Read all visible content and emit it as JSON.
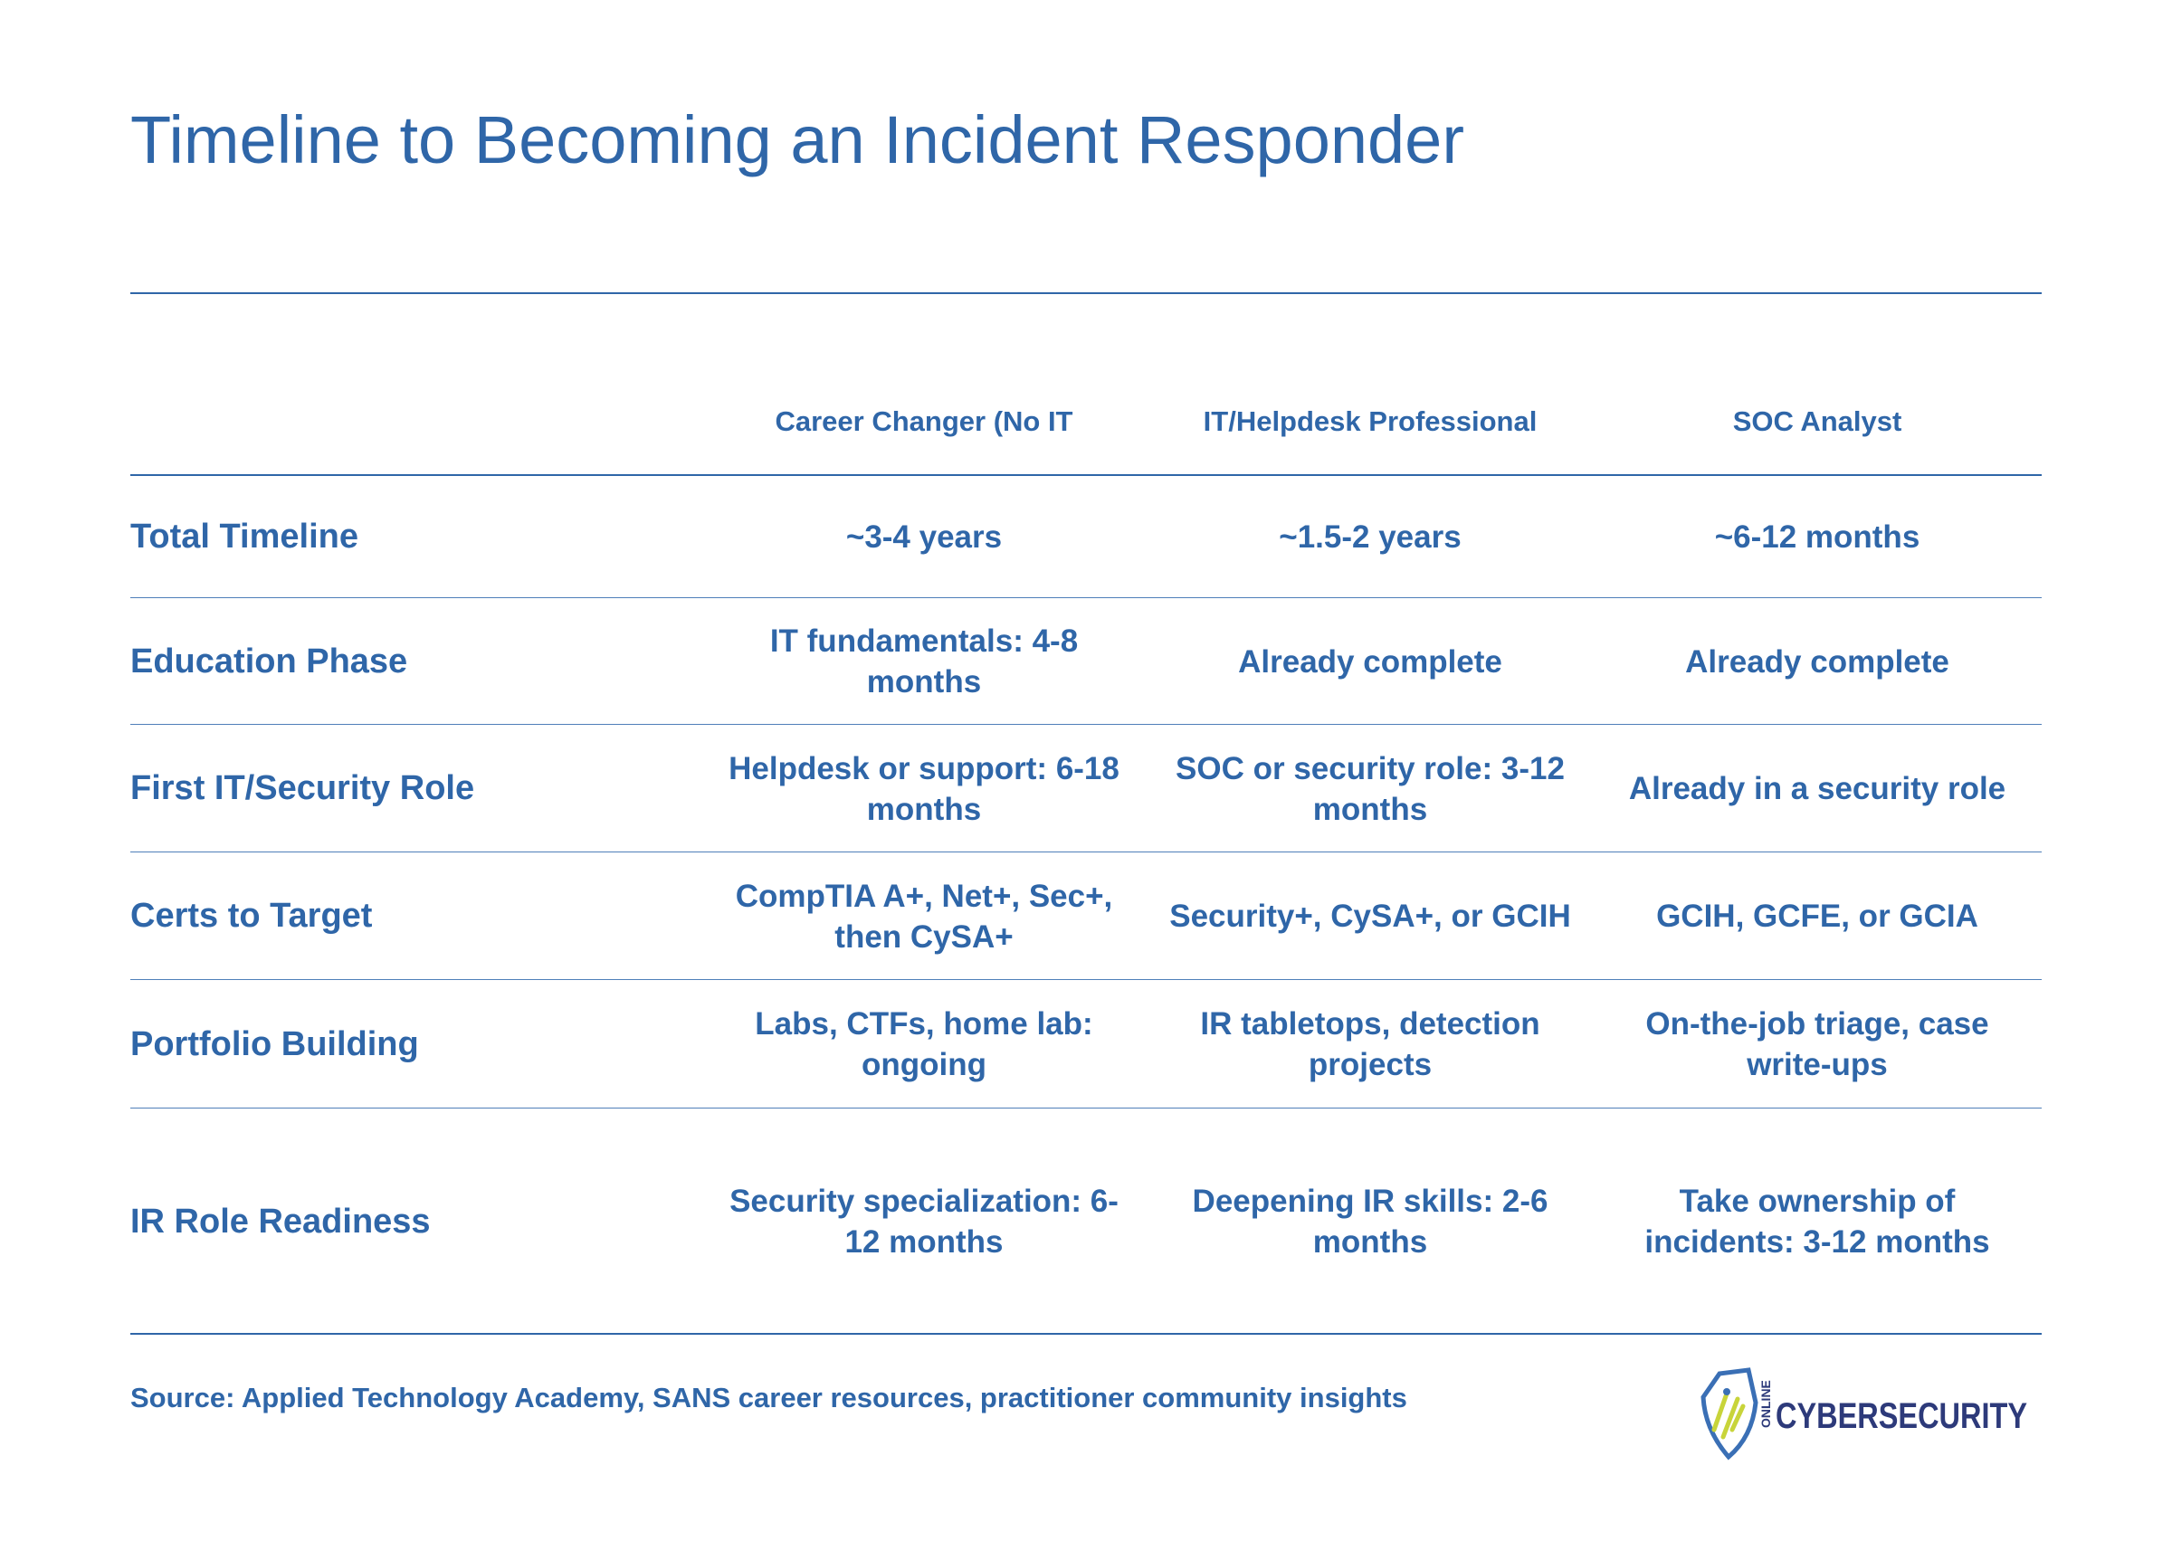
{
  "header": {
    "title": "Timeline to Becoming an Incident Responder"
  },
  "table": {
    "columns": [
      "Career Changer (No IT",
      "IT/Helpdesk Professional",
      "SOC Analyst"
    ],
    "rows": [
      [
        "Total Timeline",
        "~3-4 years",
        "~1.5-2 years",
        "~6-12 months"
      ],
      [
        "Education Phase",
        "IT fundamentals: 4-8 months",
        "Already complete",
        "Already complete"
      ],
      [
        "First IT/Security Role",
        "Helpdesk or support: 6-18 months",
        "SOC or security role: 3-12 months",
        "Already in a security role"
      ],
      [
        "Certs to Target",
        "CompTIA A+, Net+, Sec+, then CySA+",
        "Security+, CySA+, or GCIH",
        "GCIH, GCFE, or GCIA"
      ],
      [
        "Portfolio Building",
        "Labs, CTFs, home lab: ongoing",
        "IR tabletops, detection projects",
        "On-the-job triage, case write-ups"
      ],
      [
        "IR Role Readiness",
        "Security specialization: 6-12 months",
        "Deepening IR skills: 2-6 months",
        "Take ownership of incidents: 3-12 months"
      ]
    ]
  },
  "footer": {
    "source": "Source: Applied Technology Academy, SANS career resources, practitioner community insights"
  },
  "logo": {
    "small": "ONLINE",
    "text": "CYBERSECURITY"
  }
}
